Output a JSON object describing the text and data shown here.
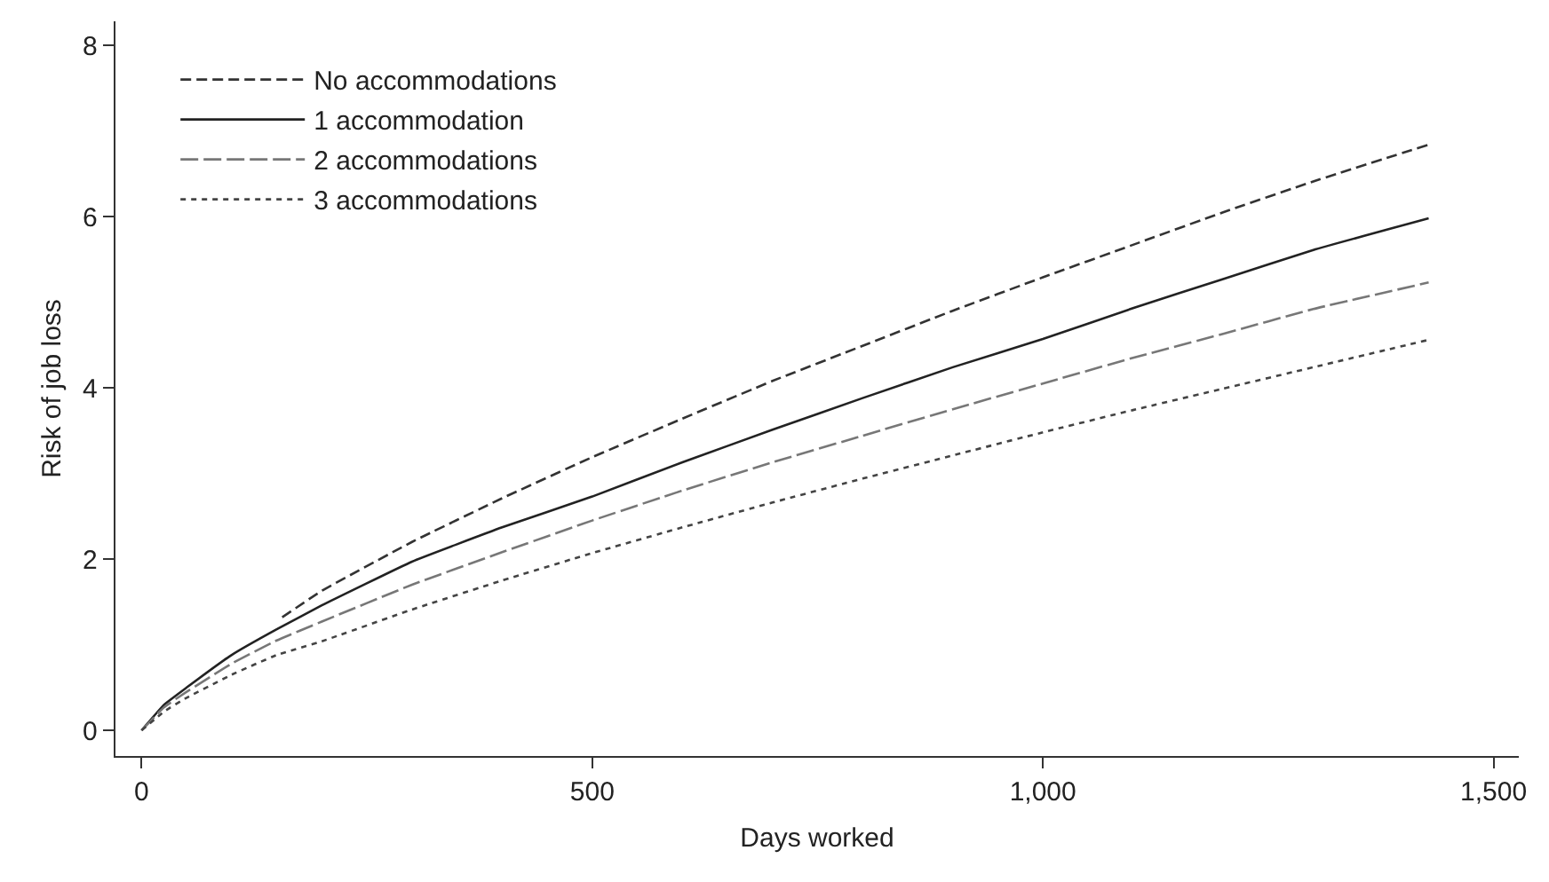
{
  "chart_data": {
    "type": "line",
    "xlabel": "Days worked",
    "ylabel": "Risk of job loss",
    "xlim": [
      -29,
      1528
    ],
    "xticks": [
      0,
      500,
      {
        "value": 1000,
        "label": "1,000"
      },
      {
        "value": 1500,
        "label": "1,500"
      }
    ],
    "ylim": [
      -0.3,
      8.28
    ],
    "yticks": [
      0,
      2,
      4,
      6,
      8
    ],
    "grid": false,
    "legend": "top left",
    "marker": "none",
    "series": [
      {
        "name": "No accommodations",
        "color": "#333333",
        "line_style": "dashed",
        "x": [
          156,
          200,
          300,
          400,
          500,
          600,
          700,
          800,
          900,
          1000,
          1100,
          1200,
          1300,
          1428
        ],
        "values": [
          1.32,
          1.63,
          2.2,
          2.71,
          3.19,
          3.64,
          4.08,
          4.49,
          4.9,
          5.29,
          5.67,
          6.05,
          6.41,
          6.84
        ]
      },
      {
        "name": "1 accommodation",
        "color": "#222222",
        "line_style": "solid",
        "x": [
          0,
          25,
          50,
          100,
          150,
          200,
          300,
          400,
          500,
          600,
          700,
          800,
          900,
          1000,
          1100,
          1200,
          1300,
          1428
        ],
        "values": [
          0,
          0.3,
          0.5,
          0.88,
          1.18,
          1.46,
          1.97,
          2.37,
          2.73,
          3.13,
          3.51,
          3.88,
          4.24,
          4.57,
          4.93,
          5.27,
          5.61,
          5.98
        ]
      },
      {
        "name": "2 accommodations",
        "color": "#777777",
        "line_style": "longdash",
        "x": [
          0,
          25,
          50,
          100,
          150,
          200,
          300,
          400,
          500,
          600,
          700,
          800,
          900,
          1000,
          1100,
          1200,
          1300,
          1428
        ],
        "values": [
          0,
          0.27,
          0.45,
          0.78,
          1.05,
          1.27,
          1.7,
          2.08,
          2.45,
          2.8,
          3.13,
          3.44,
          3.75,
          4.05,
          4.35,
          4.63,
          4.92,
          5.23
        ]
      },
      {
        "name": "3 accommodations",
        "color": "#444444",
        "line_style": "dotted",
        "x": [
          0,
          25,
          50,
          100,
          150,
          200,
          300,
          400,
          500,
          600,
          700,
          800,
          900,
          1000,
          1100,
          1200,
          1300,
          1428
        ],
        "values": [
          0,
          0.22,
          0.38,
          0.65,
          0.88,
          1.04,
          1.41,
          1.75,
          2.07,
          2.37,
          2.66,
          2.94,
          3.21,
          3.48,
          3.74,
          3.99,
          4.24,
          4.56
        ]
      }
    ]
  }
}
